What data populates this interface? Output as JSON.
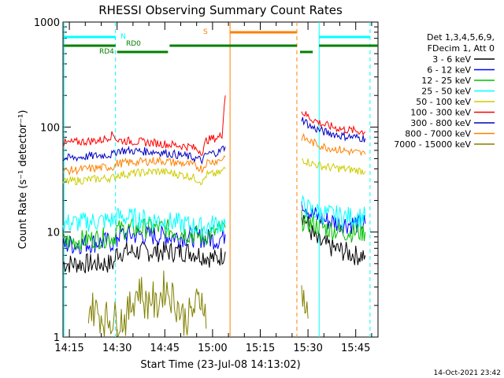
{
  "chart_data": {
    "type": "line",
    "title": "RHESSI Observing Summary Count Rates",
    "xlabel": "Start Time (23-Jul-08 14:13:02)",
    "ylabel": "Count Rate (s⁻¹ detector⁻¹)",
    "yscale": "log",
    "ylim": [
      1,
      1000
    ],
    "xlim_minutes": [
      0,
      99
    ],
    "x_ticks": [
      "14:15",
      "14:30",
      "14:45",
      "15:00",
      "15:15",
      "15:30",
      "15:45"
    ],
    "y_ticks": [
      "1",
      "10",
      "100",
      "1000"
    ],
    "legend_header": [
      "Det 1,3,4,5,6,9,",
      "FDecim 1, Att 0"
    ],
    "legend_position": "right",
    "footer": "14-Oct-2021 23:42",
    "series": [
      {
        "name": "3 - 6 keV",
        "color": "#000000",
        "segments": [
          {
            "x": [
              0,
              16,
              17,
              40,
              48,
              50,
              51
            ],
            "y": [
              5,
              5,
              6.5,
              6.5,
              5.5,
              6,
              6.5
            ]
          },
          {
            "x": [
              75,
              78,
              80,
              85,
              92,
              95
            ],
            "y": [
              15,
              10,
              8,
              7,
              6,
              6
            ]
          }
        ]
      },
      {
        "name": "6 - 12 keV",
        "color": "#0000ff",
        "segments": [
          {
            "x": [
              0,
              12,
              17,
              17,
              40,
              48,
              49,
              51
            ],
            "y": [
              7.5,
              8,
              8,
              9.5,
              9,
              8.5,
              8.5,
              9.5
            ]
          },
          {
            "x": [
              75,
              78,
              82,
              88,
              95
            ],
            "y": [
              20,
              15,
              13,
              12,
              12
            ]
          }
        ]
      },
      {
        "name": "12 - 25 keV",
        "color": "#00c000",
        "segments": [
          {
            "x": [
              0,
              16,
              17,
              30,
              44,
              48,
              49,
              51
            ],
            "y": [
              8,
              9,
              10.5,
              11,
              9,
              10,
              10.5,
              11
            ]
          },
          {
            "x": [
              75,
              78,
              82,
              88,
              95
            ],
            "y": [
              13,
              12,
              11,
              10,
              10
            ]
          }
        ]
      },
      {
        "name": "25 - 50 keV",
        "color": "#00ffff",
        "segments": [
          {
            "x": [
              0,
              16,
              17,
              30,
              44,
              48,
              51
            ],
            "y": [
              12,
              13,
              14,
              13,
              11,
              12,
              12
            ]
          },
          {
            "x": [
              75,
              78,
              82,
              88,
              95
            ],
            "y": [
              18,
              16,
              15,
              14,
              14
            ]
          }
        ]
      },
      {
        "name": "50 - 100 keV",
        "color": "#cccc00",
        "segments": [
          {
            "x": [
              0,
              16,
              17,
              30,
              40,
              44,
              45,
              49,
              51
            ],
            "y": [
              30,
              33,
              35,
              38,
              34,
              30,
              35,
              36,
              40
            ]
          },
          {
            "x": [
              75,
              78,
              82,
              88,
              95
            ],
            "y": [
              50,
              45,
              42,
              40,
              38
            ]
          }
        ]
      },
      {
        "name": "100 - 300 keV",
        "color": "#ff0000",
        "segments": [
          {
            "x": [
              0,
              12,
              16,
              17,
              30,
              40,
              44,
              45,
              49,
              50,
              51
            ],
            "y": [
              70,
              75,
              85,
              75,
              70,
              65,
              58,
              75,
              80,
              85,
              200
            ]
          },
          {
            "x": [
              75,
              78,
              82,
              88,
              95
            ],
            "y": [
              140,
              120,
              105,
              95,
              90
            ]
          }
        ]
      },
      {
        "name": "300 - 800 keV",
        "color": "#0000c0",
        "segments": [
          {
            "x": [
              0,
              16,
              17,
              30,
              40,
              44,
              45,
              49,
              51
            ],
            "y": [
              50,
              55,
              60,
              58,
              52,
              48,
              55,
              58,
              65
            ]
          },
          {
            "x": [
              75,
              78,
              82,
              88,
              95
            ],
            "y": [
              120,
              100,
              90,
              82,
              78
            ]
          }
        ]
      },
      {
        "name": "800 - 7000 keV",
        "color": "#ff8000",
        "segments": [
          {
            "x": [
              0,
              16,
              17,
              30,
              40,
              44,
              45,
              49,
              51
            ],
            "y": [
              38,
              42,
              45,
              48,
              44,
              40,
              46,
              48,
              52
            ]
          },
          {
            "x": [
              75,
              78,
              82,
              88,
              95
            ],
            "y": [
              80,
              72,
              65,
              60,
              55
            ]
          }
        ]
      },
      {
        "name": "7000 - 15000 keV",
        "color": "#808000",
        "segments": [
          {
            "x": [
              8,
              13,
              20,
              24,
              26,
              28,
              29,
              32,
              36,
              38,
              40,
              44,
              45
            ],
            "y": [
              2,
              1.5,
              1.5,
              3,
              2,
              2.5,
              1.8,
              3,
              2,
              1.5,
              1.6,
              2.5,
              1.2
            ]
          },
          {
            "x": [
              75,
              76,
              77
            ],
            "y": [
              3,
              2,
              1.5
            ]
          }
        ]
      }
    ],
    "annotations": [
      {
        "text": "N",
        "color": "#00ffff"
      },
      {
        "text": "RD0",
        "color": "#008000"
      },
      {
        "text": "RD4",
        "color": "#008000"
      },
      {
        "text": "S",
        "color": "#ff8000"
      }
    ]
  }
}
